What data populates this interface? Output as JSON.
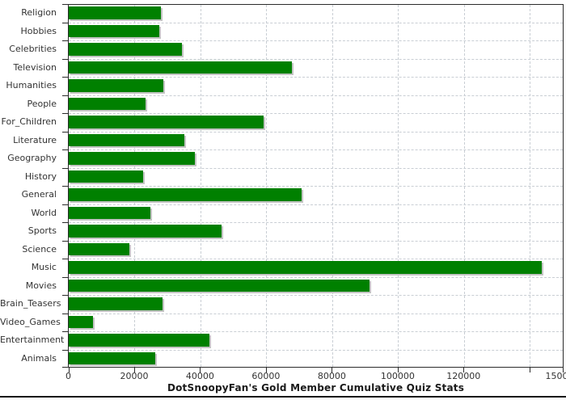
{
  "chart_data": {
    "type": "bar",
    "orientation": "horizontal",
    "title": "DotSnoopyFan's Gold Member Cumulative Quiz Stats",
    "categories": [
      "Religion",
      "Hobbies",
      "Celebrities",
      "Television",
      "Humanities",
      "People",
      "For_Children",
      "Literature",
      "Geography",
      "History",
      "General",
      "World",
      "Sports",
      "Science",
      "Music",
      "Movies",
      "Brain_Teasers",
      "Video_Games",
      "Entertainment",
      "Animals"
    ],
    "values": [
      28100,
      27400,
      34300,
      67800,
      28800,
      23200,
      59200,
      35200,
      38200,
      22500,
      70700,
      24700,
      46300,
      18400,
      143600,
      91300,
      28600,
      7300,
      42800,
      26200
    ],
    "xlim": [
      0,
      150000
    ],
    "x_ticks": [
      {
        "value": 0,
        "label": "0"
      },
      {
        "value": 20000,
        "label": "20000"
      },
      {
        "value": 40000,
        "label": "40000"
      },
      {
        "value": 60000,
        "label": "60000"
      },
      {
        "value": 80000,
        "label": "80000"
      },
      {
        "value": 100000,
        "label": "100000"
      },
      {
        "value": 120000,
        "label": "120000"
      },
      {
        "value": 140000,
        "label": ""
      },
      {
        "value": 150000,
        "label": "150000"
      }
    ],
    "grid": "dashed, both axes",
    "legend": "none",
    "colors": {
      "bar": "#008000",
      "bar_shadow": "#c4c4c4",
      "grid": "#c9ced4",
      "border": "#2b2b2b",
      "text": "#333333",
      "title": "#1a1a1a",
      "background": "#ffffff"
    }
  }
}
